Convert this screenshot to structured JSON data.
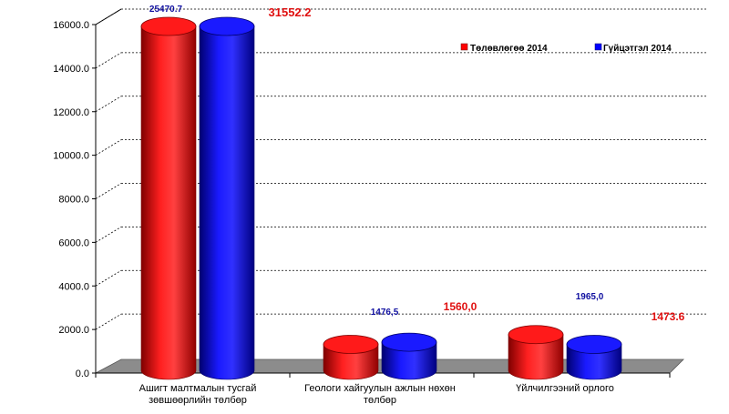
{
  "chart_data": {
    "type": "bar",
    "categories": [
      [
        "Ашигт малтмалын тусгай",
        "зөвшөөрлийн төлбөр"
      ],
      [
        "Геологи хайгуулын ажлын нөхөн",
        "төлбөр"
      ],
      [
        "Үйлчилгээний орлого"
      ]
    ],
    "series": [
      {
        "name": "Төлөвлөгөө 2014",
        "values": [
          16000,
          1400,
          1850
        ]
      },
      {
        "name": "Гүйцэтгэл 2014",
        "values": [
          16000,
          1500,
          1400
        ]
      }
    ],
    "data_labels": [
      {
        "text": "25470.7",
        "color": "#1010a0"
      },
      {
        "text": "31552.2",
        "color": "#e01010"
      },
      {
        "text": "1476,5",
        "color": "#1010a0"
      },
      {
        "text": "1560,0",
        "color": "#e01010"
      },
      {
        "text": "1965,0",
        "color": "#1010a0"
      },
      {
        "text": "1473.6",
        "color": "#e01010"
      }
    ],
    "yticks": [
      "0.0",
      "2000.0",
      "4000.0",
      "6000.0",
      "8000.0",
      "10000.0",
      "12000.0",
      "14000.0",
      "16000.0"
    ],
    "ylim": [
      0,
      16000
    ],
    "grid": true,
    "legend_position": "top-right",
    "colors": {
      "series1": "#ff0000",
      "series2": "#0000ff",
      "floor": "#808080"
    }
  }
}
